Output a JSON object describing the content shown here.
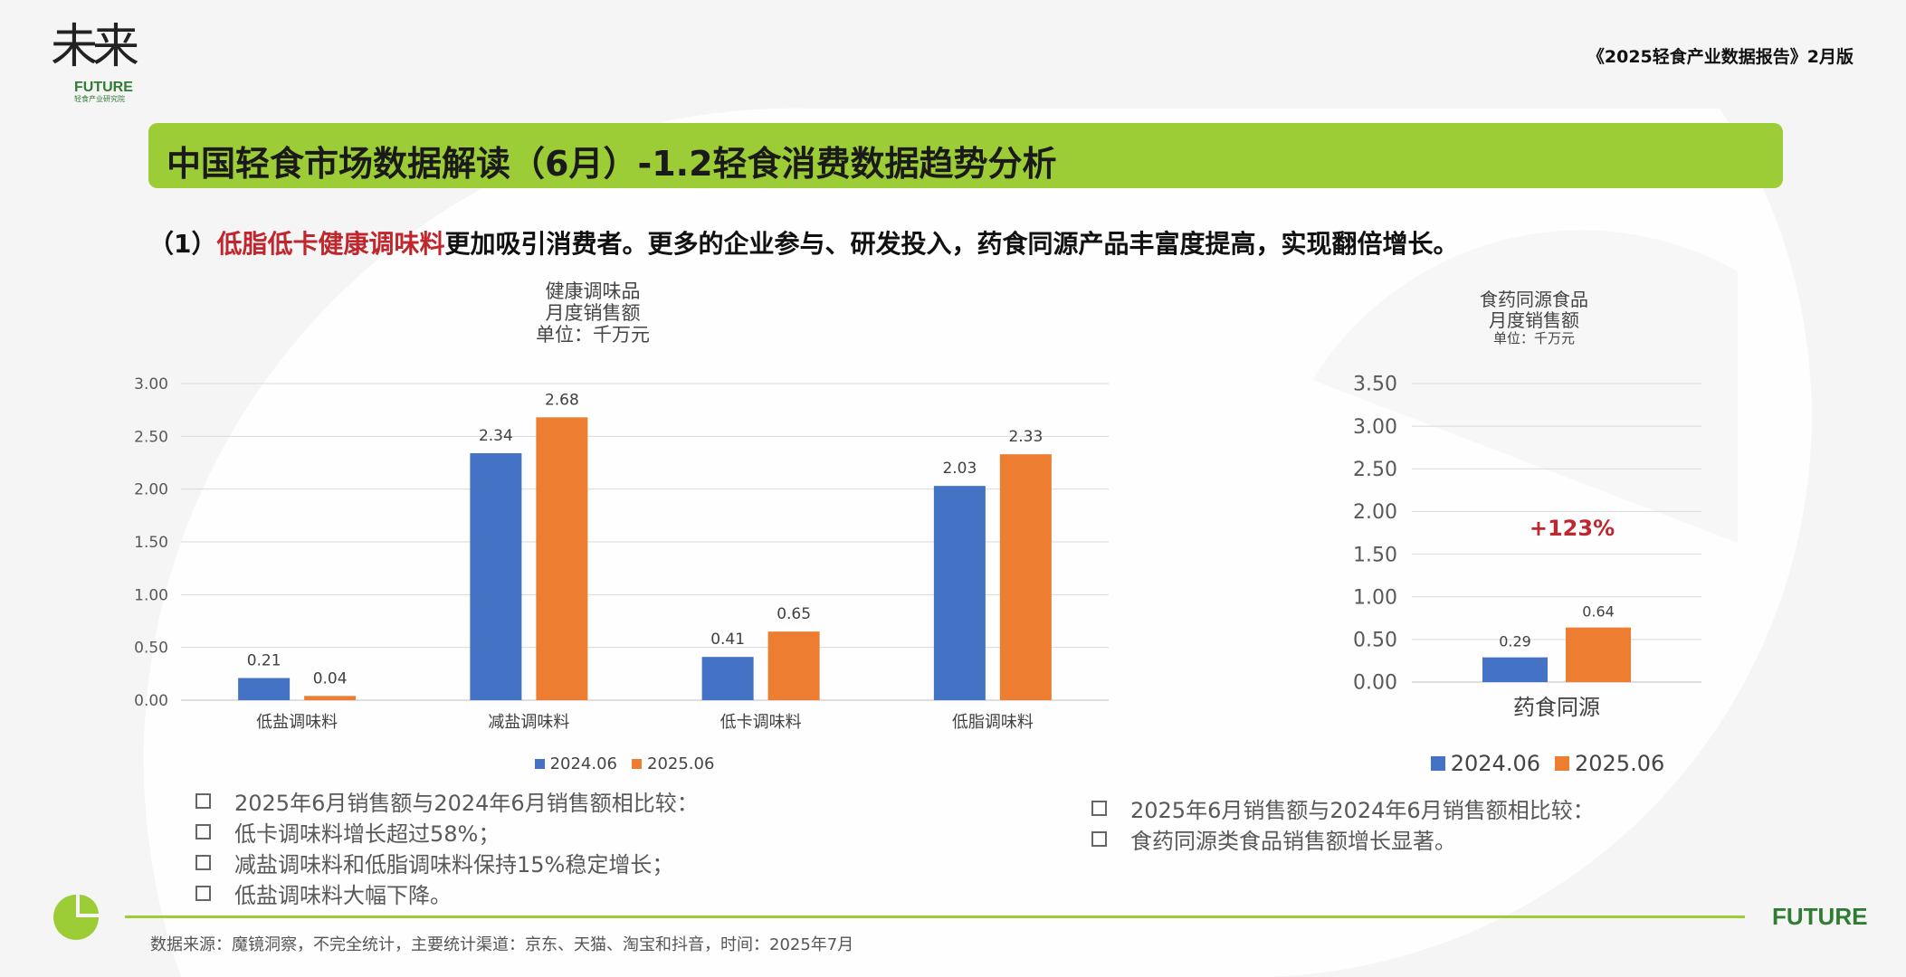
{
  "header": {
    "logo_text": "未来",
    "logo_future": "FUTURE",
    "logo_sub": "轻食产业研究院",
    "report_title": "《2025轻食产业数据报告》2月版"
  },
  "title": "中国轻食市场数据解读（6月）-1.2轻食消费数据趋势分析",
  "subtitle": {
    "prefix": "（1）",
    "highlight": "低脂低卡健康调味料",
    "rest": "更加吸引消费者。更多的企业参与、研发投入，药食同源产品丰富度提高，实现翻倍增长。"
  },
  "colors": {
    "series1": "#4472c4",
    "series2": "#ed7d31",
    "accent_green": "#9ccc36",
    "highlight_red": "#c0262d"
  },
  "chart_data": [
    {
      "type": "bar",
      "title_lines": [
        "健康调味品",
        "月度销售额",
        "单位：千万元"
      ],
      "categories": [
        "低盐调味料",
        "减盐调味料",
        "低卡调味料",
        "低脂调味料"
      ],
      "series": [
        {
          "name": "2024.06",
          "values": [
            0.21,
            2.34,
            0.41,
            2.03
          ]
        },
        {
          "name": "2025.06",
          "values": [
            0.04,
            2.68,
            0.65,
            2.33
          ]
        }
      ],
      "yticks": [
        "0.00",
        "0.50",
        "1.00",
        "1.50",
        "2.00",
        "2.50",
        "3.00"
      ],
      "ylim": [
        0,
        3
      ],
      "legend": "bottom",
      "grid": true
    },
    {
      "type": "bar",
      "title_lines": [
        "食药同源食品",
        "月度销售额",
        "单位：千万元"
      ],
      "categories": [
        "药食同源"
      ],
      "series": [
        {
          "name": "2024.06",
          "values": [
            0.29
          ]
        },
        {
          "name": "2025.06",
          "values": [
            0.64
          ]
        }
      ],
      "yticks": [
        "0.00",
        "0.50",
        "1.00",
        "1.50",
        "2.00",
        "2.50",
        "3.00",
        "3.50"
      ],
      "ylim": [
        0,
        3.5
      ],
      "annotation": "+123%",
      "legend": "bottom",
      "grid": true
    }
  ],
  "notes_left": [
    "2025年6月销售额与2024年6月销售额相比较：",
    "低卡调味料增长超过58%；",
    "减盐调味料和低脂调味料保持15%稳定增长；",
    "低盐调味料大幅下降。"
  ],
  "notes_right": [
    "2025年6月销售额与2024年6月销售额相比较：",
    "食药同源类食品销售额增长显著。"
  ],
  "footer": {
    "source": "数据来源：魔镜洞察，不完全统计，主要统计渠道：京东、天猫、淘宝和抖音，时间：2025年7月",
    "brand": "FUTURE"
  }
}
